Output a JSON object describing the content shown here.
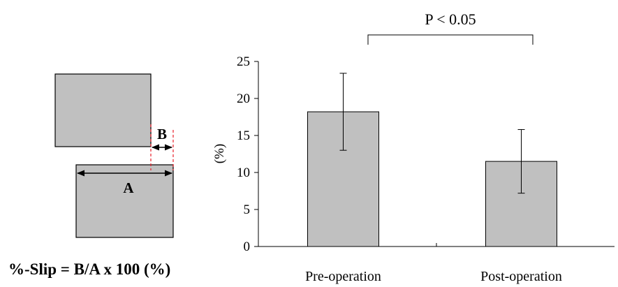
{
  "diagram": {
    "label_a": "A",
    "label_b": "B",
    "formula": "%-Slip = B/A x 100 (%)",
    "fill_color": "#c0c0c0",
    "dash_color": "#e8202a"
  },
  "chart_data": {
    "type": "bar",
    "categories": [
      "Pre-operation",
      "Post-operation"
    ],
    "values": [
      18.2,
      11.5
    ],
    "error": [
      5.2,
      4.3
    ],
    "ylabel": "(%)",
    "ylim": [
      0,
      25
    ],
    "yticks": [
      "0",
      "5",
      "10",
      "15",
      "20",
      "25"
    ],
    "bar_color": "#c0c0c0",
    "grid": false,
    "annotation": "P < 0.05"
  }
}
